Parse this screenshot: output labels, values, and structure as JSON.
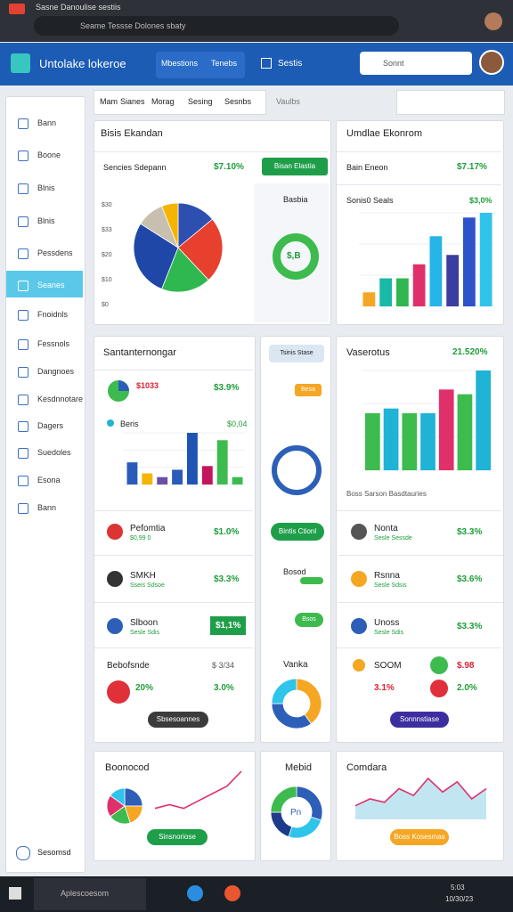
{
  "browser": {
    "tab": "Sasne Danoulise sestiis",
    "address": "Seame Tessse Dolones sbaty"
  },
  "header": {
    "title": "Untolake lokeroe",
    "nav": [
      "Mbestions",
      "Tenebs"
    ],
    "action": "Sestis",
    "search": "Sonnt"
  },
  "sidebar": {
    "items": [
      "Bann",
      "Boone",
      "Blnis",
      "Blnis",
      "Pessdens",
      "Seanes",
      "Fnoidnls",
      "Fessnols",
      "Dangnoes",
      "Kesdnnotare",
      "Dagers",
      "Suedoles",
      "Esona",
      "Bann"
    ],
    "footer": "Sesomsd"
  },
  "toolbar": {
    "tabs": [
      "Mam",
      "Sianes",
      "Morag",
      "Sesing",
      "Sesnbs"
    ],
    "extra": "Vaulbs"
  },
  "overview": {
    "title": "Bisis Ekandan",
    "label": "Sencies Sdepann",
    "value": "$7.10%",
    "button": "Bisan Elastia",
    "side_title": "Basbia",
    "ring_label": "$,B",
    "pie_labels": [
      "$30",
      "$33",
      "$20",
      "$10",
      "$0"
    ],
    "pie": {
      "values": [
        14,
        24,
        18,
        28,
        10,
        6
      ],
      "colors": [
        "#2d4fb0",
        "#e8402f",
        "#2fb84f",
        "#1f47a8",
        "#c9bfae",
        "#f5b400"
      ]
    }
  },
  "revenue": {
    "title": "Umdlae Ekonrom",
    "label": "Bain Eneon",
    "value": "$7.17%",
    "sub_label": "Sonis0 Seals",
    "sub_value": "$3,0%",
    "bars": {
      "values": [
        3,
        6,
        6,
        9,
        15,
        11,
        19,
        20
      ],
      "colors": [
        "#f5a623",
        "#19b9a8",
        "#2fb84f",
        "#e0306a",
        "#25b5e6",
        "#3b3da0",
        "#2c53c9",
        "#2fc4ea"
      ]
    }
  },
  "summary": {
    "title": "Santanternongar",
    "stat_value": "$1033",
    "stat_change": "$3.9%",
    "legend": "Beris",
    "legend_value": "$0,04",
    "bars": {
      "values": [
        6,
        3,
        2,
        4,
        14,
        5,
        12,
        2
      ],
      "colors": [
        "#2b5bb8",
        "#f5b400",
        "#6b4ea8",
        "#2b5bb8",
        "#2054b4",
        "#c2185b",
        "#3dbb4e",
        "#3dbb4e"
      ]
    },
    "rows": [
      {
        "name": "Pefomtia",
        "sub": "$0,99 0",
        "value": "$1.0%"
      },
      {
        "name": "SMKH",
        "sub": "Sseis Sdsoe",
        "value": "$3.3%"
      },
      {
        "name": "Slboon",
        "sub": "Sesle Sdis",
        "value": "$1,1%"
      }
    ],
    "footer": {
      "title": "Bebofsnde",
      "value": "$ 3/34",
      "left": "20%",
      "right": "3.0%",
      "button": "Sbsesoannes"
    }
  },
  "middle": {
    "chip": "Tsinis Stase",
    "tag": "Besa",
    "button": "Bintis Ctionl",
    "row_label": "Bosod",
    "row_chip": "Bsos",
    "donut_title": "Vanka",
    "donut": {
      "values": [
        40,
        35,
        25
      ],
      "colors": [
        "#f5a623",
        "#2d5fb8",
        "#2fc4ea"
      ]
    }
  },
  "sales": {
    "title": "Vaserotus",
    "value": "21.520%",
    "caption": "Boss Sarson Basdtauries",
    "bars": {
      "values": [
        12,
        13,
        12,
        12,
        17,
        16,
        21
      ],
      "colors": [
        "#3dbb4e",
        "#1fb3d6",
        "#3dbb4e",
        "#1fb3d6",
        "#e0306a",
        "#3dbb4e",
        "#1fb3d6"
      ]
    },
    "rows": [
      {
        "name": "Nonta",
        "sub": "Sesle Sessde",
        "value": "$3.3%"
      },
      {
        "name": "Rsnna",
        "sub": "Sesle Sdsis",
        "value": "$3.6%"
      },
      {
        "name": "Unoss",
        "sub": "Sesle Sdis",
        "value": "$3.3%"
      }
    ],
    "footer": {
      "title": "SOOM",
      "value": "$.98",
      "left": "3.1%",
      "right": "2.0%",
      "button": "Sonnnstiase"
    }
  },
  "bottom": [
    {
      "title": "Boonocod",
      "button": "Sinsnoriose",
      "pie": {
        "values": [
          25,
          20,
          20,
          20,
          15
        ],
        "colors": [
          "#2d5fb8",
          "#f5a623",
          "#3dbb4e",
          "#e0306a",
          "#2fc4ea"
        ]
      },
      "line": [
        2,
        3,
        2,
        4,
        6,
        8,
        12
      ]
    },
    {
      "title": "Mebid",
      "label": "Pn",
      "donut": {
        "values": [
          30,
          25,
          20,
          25
        ],
        "colors": [
          "#2d5fb8",
          "#2fc4ea",
          "#1e3a8a",
          "#3dbb4e"
        ]
      }
    },
    {
      "title": "Comdara",
      "button": "Boss Kosesmas",
      "line": [
        4,
        6,
        5,
        9,
        7,
        12,
        8,
        11,
        6,
        9
      ]
    }
  ],
  "taskbar": {
    "search": "Aplescoesom",
    "time": "5:03",
    "date": "10/30/23"
  }
}
